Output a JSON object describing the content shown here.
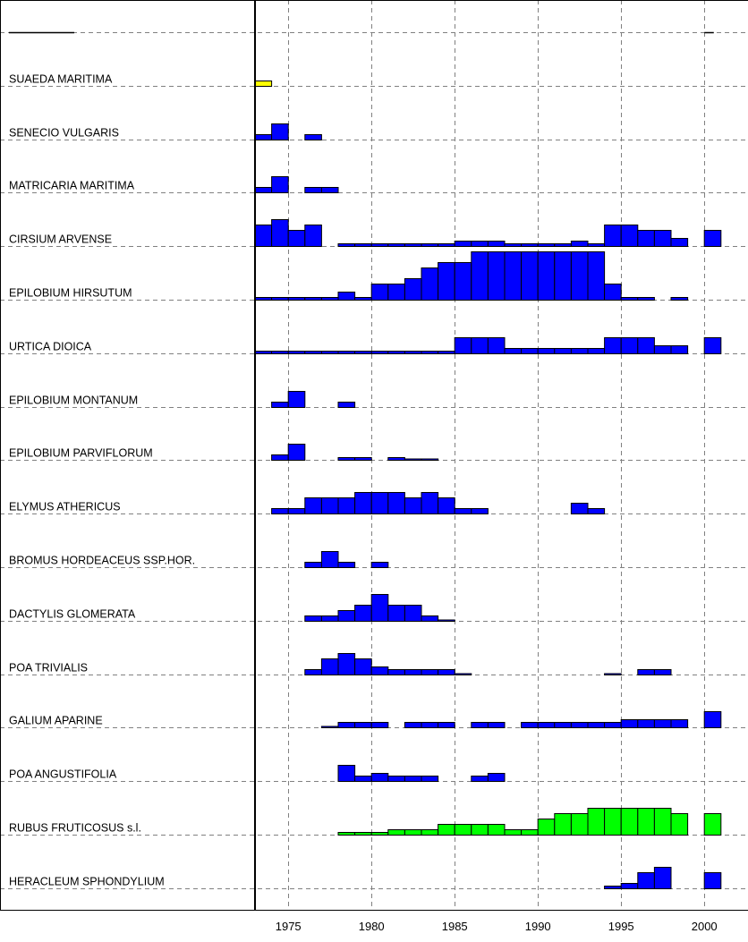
{
  "colors": {
    "background": "#ffffff",
    "grid": "#808080",
    "border": "#000000",
    "blue": "#0000ff",
    "green": "#00ff00",
    "yellow": "#ffff00"
  },
  "chart_data": {
    "type": "bar",
    "title": "",
    "xlabel": "",
    "ylabel": "",
    "x_ticks": [
      1975,
      1980,
      1985,
      1990,
      1995,
      2000
    ],
    "xlim": [
      1973,
      2002.3
    ],
    "grid": true,
    "bar_width_years": 1,
    "level_max": 5,
    "series": [
      {
        "name": "",
        "color": "#000000",
        "values": [],
        "line_segments": [
          [
            1973,
            1975
          ],
          [
            2000,
            2000.3
          ]
        ]
      },
      {
        "name": "SUAEDA MARITIMA",
        "color": "yellow",
        "values": [
          [
            1973,
            1
          ]
        ]
      },
      {
        "name": "SENECIO VULGARIS",
        "color": "blue",
        "values": [
          [
            1973,
            1
          ],
          [
            1974,
            3
          ],
          [
            1976,
            1
          ]
        ]
      },
      {
        "name": "MATRICARIA MARITIMA",
        "color": "blue",
        "values": [
          [
            1973,
            1
          ],
          [
            1974,
            3
          ],
          [
            1976,
            1
          ],
          [
            1977,
            1
          ]
        ]
      },
      {
        "name": "CIRSIUM ARVENSE",
        "color": "blue",
        "values": [
          [
            1973,
            4
          ],
          [
            1974,
            5
          ],
          [
            1975,
            3
          ],
          [
            1976,
            4
          ],
          [
            1978,
            0.5
          ],
          [
            1979,
            0.5
          ],
          [
            1980,
            0.5
          ],
          [
            1981,
            0.5
          ],
          [
            1982,
            0.5
          ],
          [
            1983,
            0.5
          ],
          [
            1984,
            0.5
          ],
          [
            1985,
            1
          ],
          [
            1986,
            1
          ],
          [
            1987,
            1
          ],
          [
            1988,
            0.5
          ],
          [
            1989,
            0.5
          ],
          [
            1990,
            0.5
          ],
          [
            1991,
            0.5
          ],
          [
            1992,
            1
          ],
          [
            1993,
            0.5
          ],
          [
            1994,
            4
          ],
          [
            1995,
            4
          ],
          [
            1996,
            3
          ],
          [
            1997,
            3
          ],
          [
            1998,
            1.5
          ],
          [
            2000,
            3
          ]
        ]
      },
      {
        "name": "EPILOBIUM HIRSUTUM",
        "color": "blue",
        "values": [
          [
            1973,
            0.5
          ],
          [
            1974,
            0.5
          ],
          [
            1975,
            0.5
          ],
          [
            1976,
            0.5
          ],
          [
            1977,
            0.5
          ],
          [
            1978,
            1.5
          ],
          [
            1979,
            0.5
          ],
          [
            1980,
            3
          ],
          [
            1981,
            3
          ],
          [
            1982,
            4
          ],
          [
            1983,
            6
          ],
          [
            1984,
            7
          ],
          [
            1985,
            7
          ],
          [
            1986,
            9
          ],
          [
            1987,
            9
          ],
          [
            1988,
            9
          ],
          [
            1989,
            9
          ],
          [
            1990,
            9
          ],
          [
            1991,
            9
          ],
          [
            1992,
            9
          ],
          [
            1993,
            9
          ],
          [
            1994,
            3
          ],
          [
            1995,
            0.5
          ],
          [
            1996,
            0.5
          ],
          [
            1998,
            0.5
          ]
        ]
      },
      {
        "name": "URTICA DIOICA",
        "color": "blue",
        "values": [
          [
            1973,
            0.5
          ],
          [
            1974,
            0.5
          ],
          [
            1975,
            0.5
          ],
          [
            1976,
            0.5
          ],
          [
            1977,
            0.5
          ],
          [
            1978,
            0.5
          ],
          [
            1979,
            0.5
          ],
          [
            1980,
            0.5
          ],
          [
            1981,
            0.5
          ],
          [
            1982,
            0.5
          ],
          [
            1983,
            0.5
          ],
          [
            1984,
            0.5
          ],
          [
            1985,
            3
          ],
          [
            1986,
            3
          ],
          [
            1987,
            3
          ],
          [
            1988,
            1
          ],
          [
            1989,
            1
          ],
          [
            1990,
            1
          ],
          [
            1991,
            1
          ],
          [
            1992,
            1
          ],
          [
            1993,
            1
          ],
          [
            1994,
            3
          ],
          [
            1995,
            3
          ],
          [
            1996,
            3
          ],
          [
            1997,
            1.5
          ],
          [
            1998,
            1.5
          ],
          [
            2000,
            3
          ]
        ]
      },
      {
        "name": "EPILOBIUM MONTANUM",
        "color": "blue",
        "values": [
          [
            1974,
            1
          ],
          [
            1975,
            3
          ],
          [
            1978,
            1
          ]
        ]
      },
      {
        "name": "EPILOBIUM PARVIFLORUM",
        "color": "blue",
        "values": [
          [
            1974,
            1
          ],
          [
            1975,
            3
          ],
          [
            1978,
            0.5
          ],
          [
            1979,
            0.5
          ],
          [
            1981,
            0.5
          ],
          [
            1982,
            0.2
          ],
          [
            1983,
            0.2
          ]
        ]
      },
      {
        "name": "ELYMUS ATHERICUS",
        "color": "blue",
        "values": [
          [
            1974,
            1
          ],
          [
            1975,
            1
          ],
          [
            1976,
            3
          ],
          [
            1977,
            3
          ],
          [
            1978,
            3
          ],
          [
            1979,
            4
          ],
          [
            1980,
            4
          ],
          [
            1981,
            4
          ],
          [
            1982,
            3
          ],
          [
            1983,
            4
          ],
          [
            1984,
            3
          ],
          [
            1985,
            1
          ],
          [
            1986,
            1
          ],
          [
            1992,
            2
          ],
          [
            1993,
            1
          ]
        ]
      },
      {
        "name": "BROMUS HORDEACEUS SSP.HOR.",
        "color": "blue",
        "values": [
          [
            1976,
            1
          ],
          [
            1977,
            3
          ],
          [
            1978,
            1
          ],
          [
            1980,
            1
          ]
        ]
      },
      {
        "name": "DACTYLIS GLOMERATA",
        "color": "blue",
        "values": [
          [
            1976,
            1
          ],
          [
            1977,
            1
          ],
          [
            1978,
            2
          ],
          [
            1979,
            3
          ],
          [
            1980,
            5
          ],
          [
            1981,
            3
          ],
          [
            1982,
            3
          ],
          [
            1983,
            1
          ],
          [
            1984,
            0.2
          ]
        ]
      },
      {
        "name": "POA TRIVIALIS",
        "color": "blue",
        "values": [
          [
            1976,
            1
          ],
          [
            1977,
            3
          ],
          [
            1978,
            4
          ],
          [
            1979,
            3
          ],
          [
            1980,
            1.5
          ],
          [
            1981,
            1
          ],
          [
            1982,
            1
          ],
          [
            1983,
            1
          ],
          [
            1984,
            1
          ],
          [
            1985,
            0.2
          ],
          [
            1994,
            0.2
          ],
          [
            1996,
            1
          ],
          [
            1997,
            1
          ]
        ]
      },
      {
        "name": "GALIUM APARINE",
        "color": "blue",
        "values": [
          [
            1977,
            0.2
          ],
          [
            1978,
            1
          ],
          [
            1979,
            1
          ],
          [
            1980,
            1
          ],
          [
            1982,
            1
          ],
          [
            1983,
            1
          ],
          [
            1984,
            1
          ],
          [
            1986,
            1
          ],
          [
            1987,
            1
          ],
          [
            1989,
            1
          ],
          [
            1990,
            1
          ],
          [
            1991,
            1
          ],
          [
            1992,
            1
          ],
          [
            1993,
            1
          ],
          [
            1994,
            1
          ],
          [
            1995,
            1.5
          ],
          [
            1996,
            1.5
          ],
          [
            1997,
            1.5
          ],
          [
            1998,
            1.5
          ],
          [
            2000,
            3
          ]
        ]
      },
      {
        "name": "POA ANGUSTIFOLIA",
        "color": "blue",
        "values": [
          [
            1978,
            3
          ],
          [
            1979,
            1
          ],
          [
            1980,
            1.5
          ],
          [
            1981,
            1
          ],
          [
            1982,
            1
          ],
          [
            1983,
            1
          ],
          [
            1986,
            1
          ],
          [
            1987,
            1.5
          ]
        ]
      },
      {
        "name": "RUBUS FRUTICOSUS s.l.",
        "color": "green",
        "values": [
          [
            1978,
            0.5
          ],
          [
            1979,
            0.5
          ],
          [
            1980,
            0.5
          ],
          [
            1981,
            1
          ],
          [
            1982,
            1
          ],
          [
            1983,
            1
          ],
          [
            1984,
            2
          ],
          [
            1985,
            2
          ],
          [
            1986,
            2
          ],
          [
            1987,
            2
          ],
          [
            1988,
            1
          ],
          [
            1989,
            1
          ],
          [
            1990,
            3
          ],
          [
            1991,
            4
          ],
          [
            1992,
            4
          ],
          [
            1993,
            5
          ],
          [
            1994,
            5
          ],
          [
            1995,
            5
          ],
          [
            1996,
            5
          ],
          [
            1997,
            5
          ],
          [
            1998,
            4
          ],
          [
            2000,
            4
          ]
        ]
      },
      {
        "name": "HERACLEUM SPHONDYLIUM",
        "color": "blue",
        "values": [
          [
            1994,
            0.5
          ],
          [
            1995,
            1
          ],
          [
            1996,
            3
          ],
          [
            1997,
            4
          ],
          [
            2000,
            3
          ]
        ]
      }
    ]
  }
}
